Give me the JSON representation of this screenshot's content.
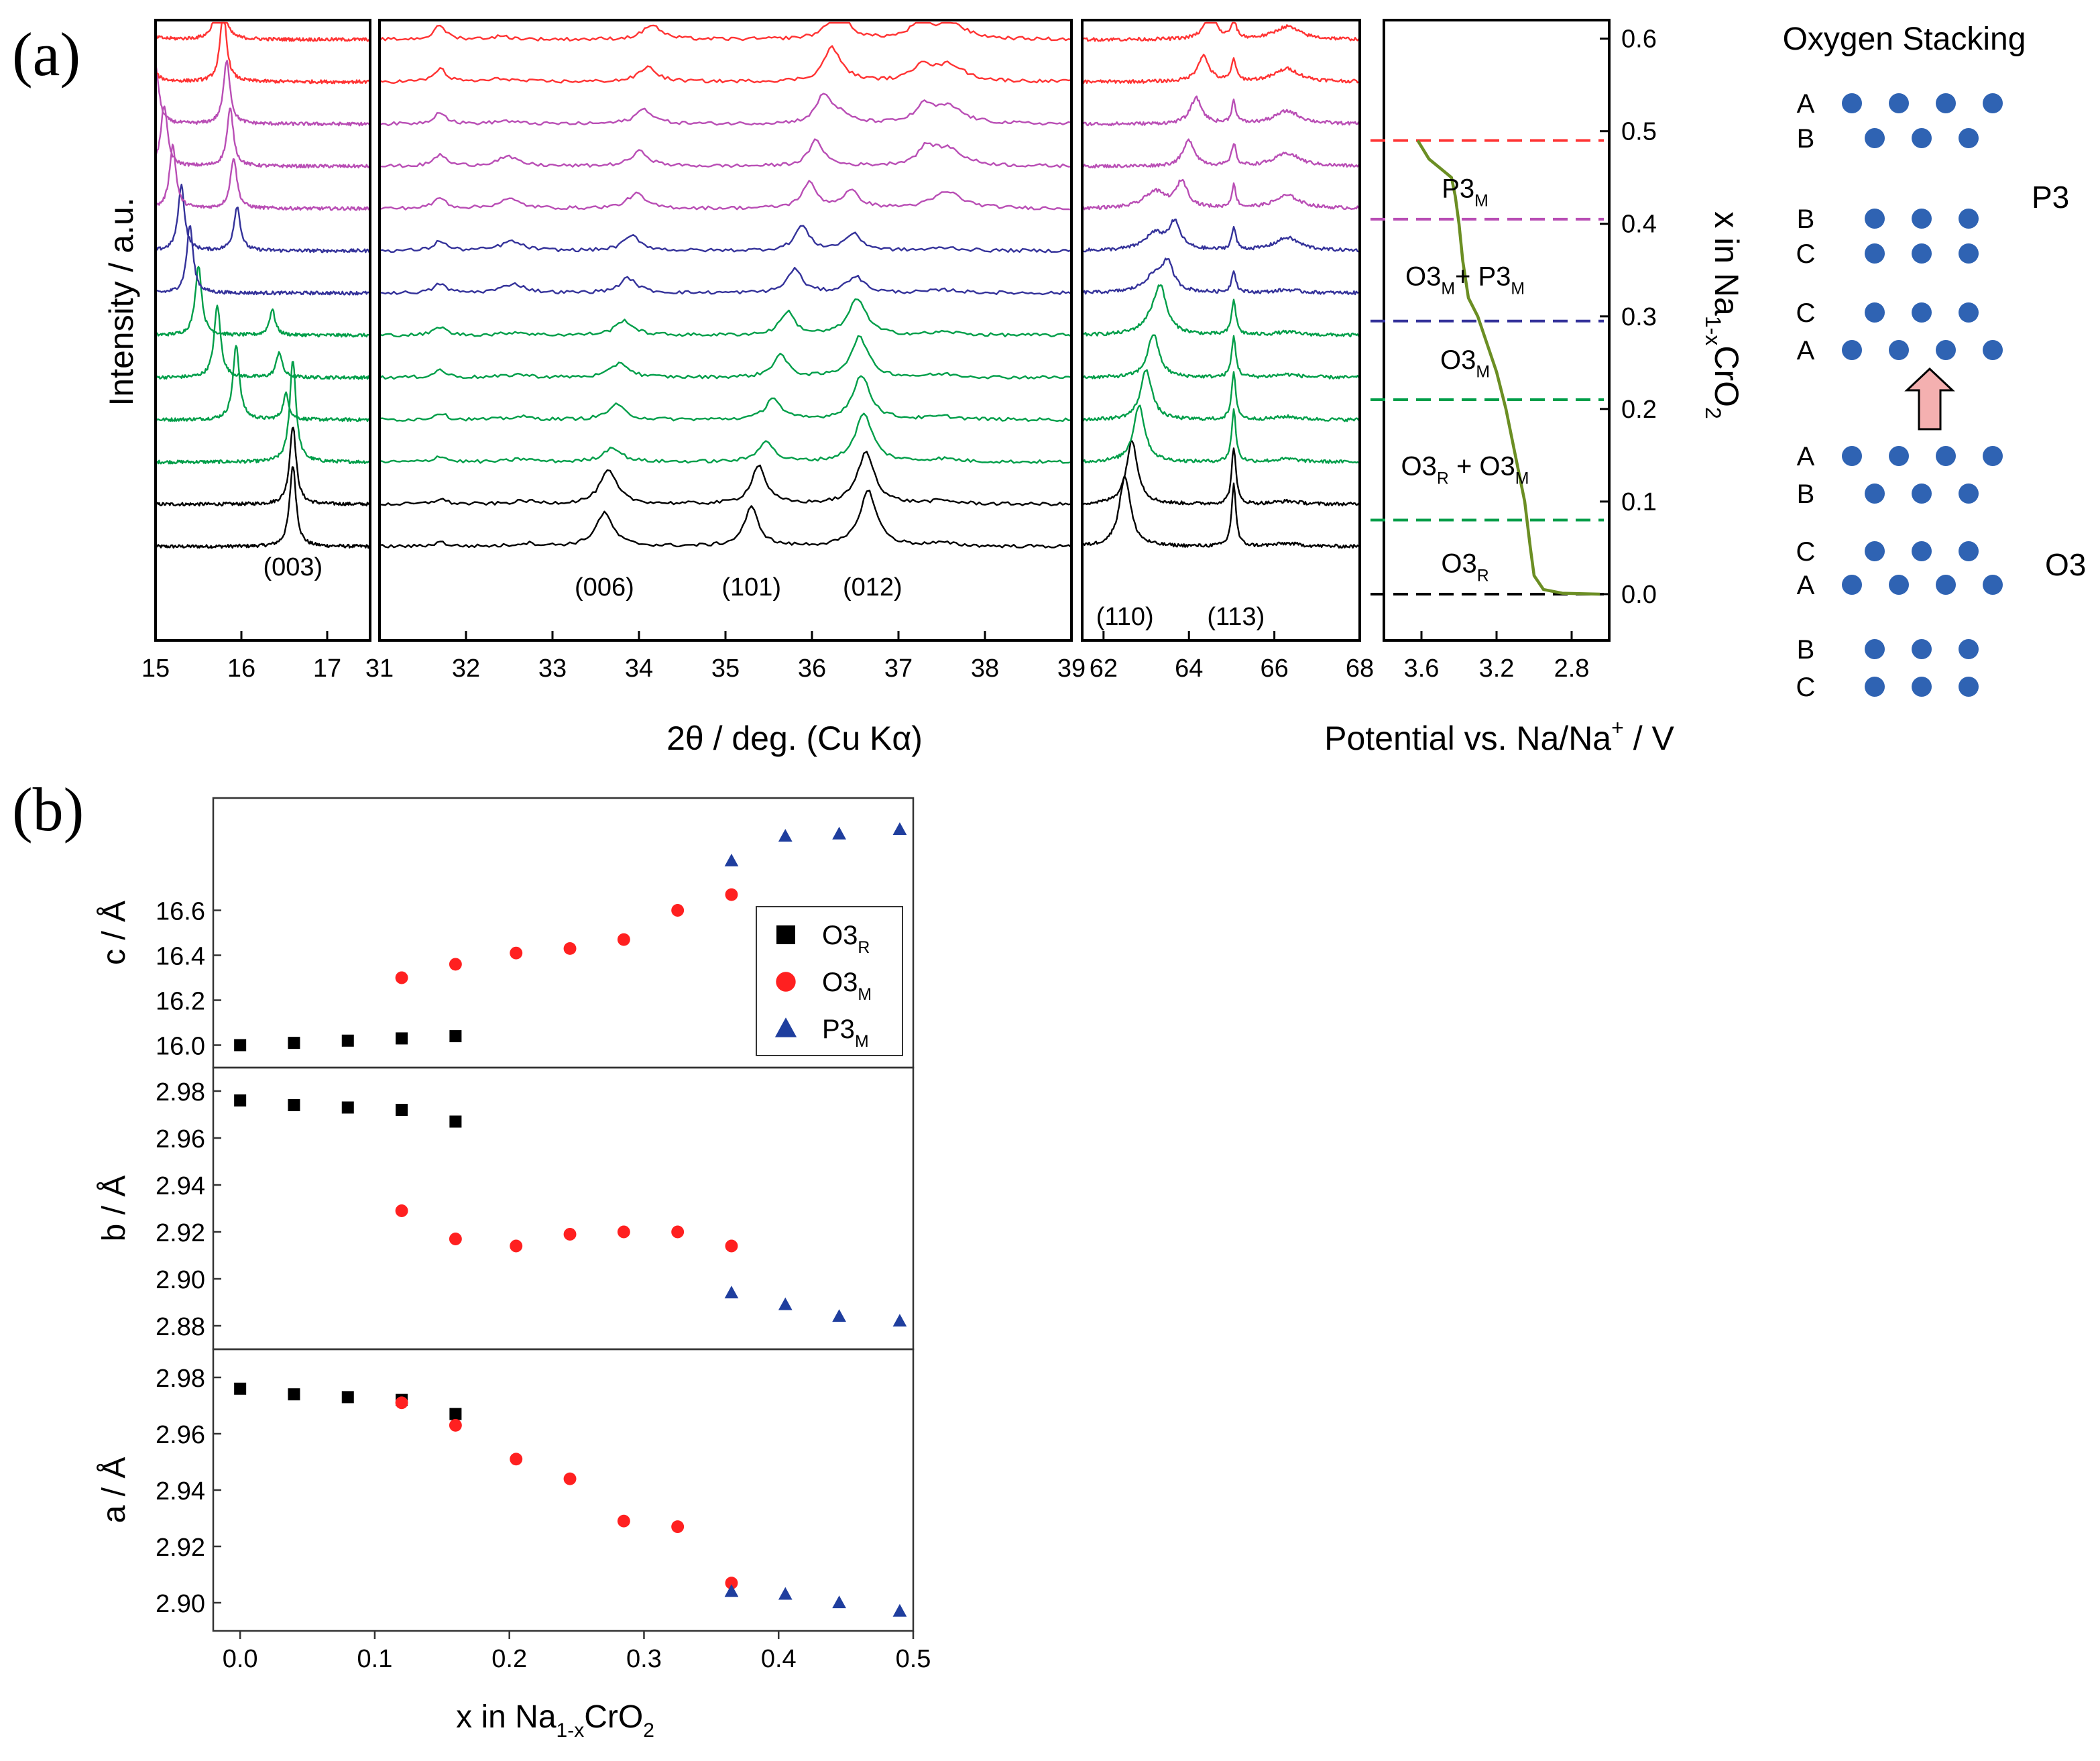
{
  "chart_data": [
    {
      "panel": "(a)",
      "type": "line",
      "xlabel": "2θ / deg. (Cu Kα)",
      "ylabel": "Intensity / a.u.",
      "x_segments": [
        {
          "xlim": [
            15,
            17.5
          ],
          "ticks": [
            "15",
            "16",
            "17"
          ],
          "tick_values": [
            15,
            16,
            17
          ]
        },
        {
          "xlim": [
            31,
            39
          ],
          "ticks": [
            "31",
            "32",
            "33",
            "34",
            "35",
            "36",
            "37",
            "38",
            "39"
          ],
          "tick_values": [
            31,
            32,
            33,
            34,
            35,
            36,
            37,
            38,
            39
          ]
        },
        {
          "xlim": [
            61.5,
            68
          ],
          "ticks": [
            "62",
            "64",
            "66",
            "68"
          ],
          "tick_values": [
            62,
            64,
            66,
            68
          ]
        }
      ],
      "series_colors": [
        "#000000",
        "#000000",
        "#009e49",
        "#009e49",
        "#009e49",
        "#009e49",
        "#34329a",
        "#34329a",
        "#b94eb5",
        "#b94eb5",
        "#b94eb5",
        "#ff3333",
        "#ff3333"
      ],
      "peaks": [
        {
          "label": "(003)",
          "x": 16.6
        },
        {
          "label": "(006)",
          "x": 33.6
        },
        {
          "label": "(101)",
          "x": 35.3
        },
        {
          "label": "(012)",
          "x": 36.7
        },
        {
          "label": "(110)",
          "x": 62.5
        },
        {
          "label": "(113)",
          "x": 65.1
        }
      ]
    },
    {
      "panel": "(a)",
      "type": "line",
      "xlabel": "Potential vs. Na/Na",
      "xlabel_sup": "+",
      "xlabel_tail": " / V",
      "ylabel_main": "x in Na",
      "ylabel_sub": "1-x",
      "ylabel_tail": "CrO",
      "ylabel_sub2": "2",
      "xlim": [
        3.8,
        2.6
      ],
      "ylim": [
        -0.05,
        0.62
      ],
      "x_ticks": [
        "3.6",
        "3.2",
        "2.8"
      ],
      "x_tick_values": [
        3.6,
        3.2,
        2.8
      ],
      "y_ticks": [
        "0.0",
        "0.1",
        "0.2",
        "0.3",
        "0.4",
        "0.5",
        "0.6"
      ],
      "y_tick_values": [
        0.0,
        0.1,
        0.2,
        0.3,
        0.4,
        0.5,
        0.6
      ],
      "curve_color": "#6b8e23",
      "curve": [
        {
          "v": 3.62,
          "x": 0.49
        },
        {
          "v": 3.56,
          "x": 0.47
        },
        {
          "v": 3.5,
          "x": 0.46
        },
        {
          "v": 3.44,
          "x": 0.45
        },
        {
          "v": 3.42,
          "x": 0.43
        },
        {
          "v": 3.4,
          "x": 0.4
        },
        {
          "v": 3.38,
          "x": 0.36
        },
        {
          "v": 3.35,
          "x": 0.32
        },
        {
          "v": 3.3,
          "x": 0.3
        },
        {
          "v": 3.25,
          "x": 0.27
        },
        {
          "v": 3.2,
          "x": 0.24
        },
        {
          "v": 3.15,
          "x": 0.2
        },
        {
          "v": 3.1,
          "x": 0.15
        },
        {
          "v": 3.05,
          "x": 0.1
        },
        {
          "v": 3.02,
          "x": 0.05
        },
        {
          "v": 3.0,
          "x": 0.02
        },
        {
          "v": 2.95,
          "x": 0.005
        },
        {
          "v": 2.85,
          "x": 0.001
        },
        {
          "v": 2.65,
          "x": 0.0
        }
      ],
      "phase_lines": [
        {
          "x": 0.0,
          "color": "#000000"
        },
        {
          "x": 0.08,
          "color": "#009e49"
        },
        {
          "x": 0.21,
          "color": "#009e49"
        },
        {
          "x": 0.295,
          "color": "#34329a"
        },
        {
          "x": 0.405,
          "color": "#b94eb5"
        },
        {
          "x": 0.49,
          "color": "#ff3333"
        }
      ],
      "phase_labels": [
        {
          "main": "P3",
          "sub": "M",
          "x": 0.44
        },
        {
          "main": "O3",
          "sub": "M",
          "mid": "+ P3",
          "sub2": "M",
          "x": 0.345
        },
        {
          "main": "O3",
          "sub": "M",
          "x": 0.255
        },
        {
          "main": "O3",
          "sub": "R",
          "mid": " + O3",
          "sub2": "M",
          "x": 0.14
        },
        {
          "main": "O3",
          "sub": "R",
          "x": 0.035
        }
      ]
    },
    {
      "panel": "(b)",
      "type": "scatter",
      "xlabel_main": "x in Na",
      "xlabel_sub": "1-x",
      "xlabel_tail": "CrO",
      "xlabel_sub2": "2",
      "xlim": [
        -0.02,
        0.5
      ],
      "x_ticks": [
        "0.0",
        "0.1",
        "0.2",
        "0.3",
        "0.4",
        "0.5"
      ],
      "x_tick_values": [
        0.0,
        0.1,
        0.2,
        0.3,
        0.4,
        0.5
      ],
      "legend": [
        {
          "main": "O3",
          "sub": "R",
          "marker": "square",
          "color": "#000000"
        },
        {
          "main": "O3",
          "sub": "M",
          "marker": "circle",
          "color": "#ff2020"
        },
        {
          "main": "P3",
          "sub": "M",
          "marker": "triangle",
          "color": "#1f3e9e"
        }
      ],
      "subplots": [
        {
          "ylabel": "c / Å",
          "ylim": [
            15.9,
            17.1
          ],
          "y_ticks": [
            "16.0",
            "16.2",
            "16.4",
            "16.6"
          ],
          "y_tick_values": [
            16.0,
            16.2,
            16.4,
            16.6
          ],
          "series": [
            {
              "marker": "square",
              "color": "#000000",
              "x": [
                0.0,
                0.04,
                0.08,
                0.12,
                0.16
              ],
              "y": [
                16.0,
                16.01,
                16.02,
                16.03,
                16.04
              ]
            },
            {
              "marker": "circle",
              "color": "#ff2020",
              "x": [
                0.12,
                0.16,
                0.205,
                0.245,
                0.285,
                0.325,
                0.365
              ],
              "y": [
                16.3,
                16.36,
                16.41,
                16.43,
                16.47,
                16.6,
                16.67
              ]
            },
            {
              "marker": "triangle",
              "color": "#1f3e9e",
              "x": [
                0.365,
                0.405,
                0.445,
                0.49
              ],
              "y": [
                16.82,
                16.93,
                16.94,
                16.96
              ]
            }
          ]
        },
        {
          "ylabel": "b / Å",
          "ylim": [
            2.87,
            2.99
          ],
          "y_ticks": [
            "2.88",
            "2.90",
            "2.92",
            "2.94",
            "2.96",
            "2.98"
          ],
          "y_tick_values": [
            2.88,
            2.9,
            2.92,
            2.94,
            2.96,
            2.98
          ],
          "series": [
            {
              "marker": "square",
              "color": "#000000",
              "x": [
                0.0,
                0.04,
                0.08,
                0.12,
                0.16
              ],
              "y": [
                2.976,
                2.974,
                2.973,
                2.972,
                2.967
              ]
            },
            {
              "marker": "circle",
              "color": "#ff2020",
              "x": [
                0.12,
                0.16,
                0.205,
                0.245,
                0.285,
                0.325,
                0.365
              ],
              "y": [
                2.929,
                2.917,
                2.914,
                2.919,
                2.92,
                2.92,
                2.914
              ]
            },
            {
              "marker": "triangle",
              "color": "#1f3e9e",
              "x": [
                0.365,
                0.405,
                0.445,
                0.49
              ],
              "y": [
                2.894,
                2.889,
                2.884,
                2.882
              ]
            }
          ]
        },
        {
          "ylabel": "a / Å",
          "ylim": [
            2.89,
            2.99
          ],
          "y_ticks": [
            "2.90",
            "2.92",
            "2.94",
            "2.96",
            "2.98"
          ],
          "y_tick_values": [
            2.9,
            2.92,
            2.94,
            2.96,
            2.98
          ],
          "series": [
            {
              "marker": "square",
              "color": "#000000",
              "x": [
                0.0,
                0.04,
                0.08,
                0.12,
                0.16
              ],
              "y": [
                2.976,
                2.974,
                2.973,
                2.972,
                2.967
              ]
            },
            {
              "marker": "circle",
              "color": "#ff2020",
              "x": [
                0.12,
                0.16,
                0.205,
                0.245,
                0.285,
                0.325,
                0.365
              ],
              "y": [
                2.971,
                2.963,
                2.951,
                2.944,
                2.929,
                2.927,
                2.907
              ]
            },
            {
              "marker": "triangle",
              "color": "#1f3e9e",
              "x": [
                0.365,
                0.405,
                0.445,
                0.49
              ],
              "y": [
                2.904,
                2.903,
                2.9,
                2.897
              ]
            }
          ]
        }
      ]
    }
  ],
  "panel_labels": {
    "a": "(a)",
    "b": "(b)"
  },
  "stacking": {
    "title": "Oxygen Stacking",
    "dot_color": "#2f63b3",
    "arrow_color": "#f4b0b0",
    "p3_label": "P3",
    "o3_label": "O3",
    "p3_rows": [
      {
        "letter": "A",
        "dots": 4
      },
      {
        "letter": "B",
        "dots": 3
      },
      {
        "letter": "B",
        "dots": 3
      },
      {
        "letter": "C",
        "dots": 3
      },
      {
        "letter": "C",
        "dots": 3
      },
      {
        "letter": "A",
        "dots": 4
      }
    ],
    "o3_rows": [
      {
        "letter": "A",
        "dots": 4
      },
      {
        "letter": "B",
        "dots": 3
      },
      {
        "letter": "C",
        "dots": 3
      },
      {
        "letter": "A",
        "dots": 4
      },
      {
        "letter": "B",
        "dots": 3
      },
      {
        "letter": "C",
        "dots": 3
      }
    ]
  }
}
